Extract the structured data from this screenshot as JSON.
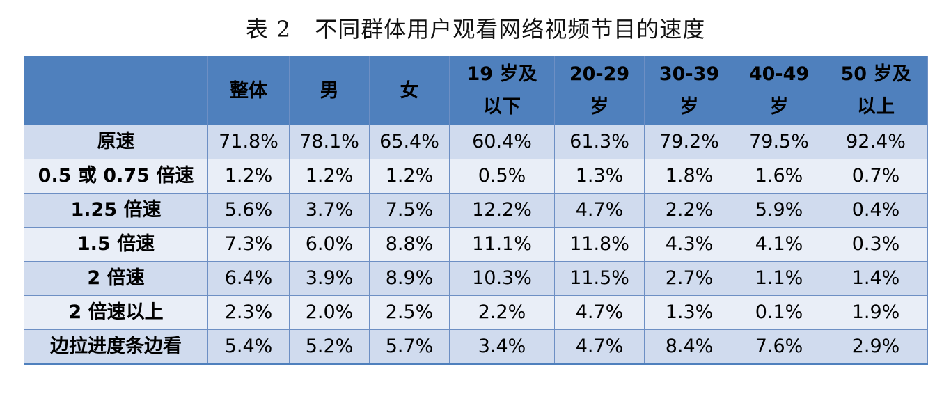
{
  "caption": {
    "number": "表 2",
    "title": "不同群体用户观看网络视频节目的速度"
  },
  "table": {
    "corner": "",
    "headers": [
      {
        "line1": "整体",
        "line2": ""
      },
      {
        "line1": "男",
        "line2": ""
      },
      {
        "line1": "女",
        "line2": ""
      },
      {
        "line1": "19 岁及",
        "line2": "以下"
      },
      {
        "line1": "20-29",
        "line2": "岁"
      },
      {
        "line1": "30-39",
        "line2": "岁"
      },
      {
        "line1": "40-49",
        "line2": "岁"
      },
      {
        "line1": "50 岁及",
        "line2": "以上"
      }
    ],
    "rows": [
      {
        "label": "原速",
        "cells": [
          "71.8%",
          "78.1%",
          "65.4%",
          "60.4%",
          "61.3%",
          "79.2%",
          "79.5%",
          "92.4%"
        ]
      },
      {
        "label": "0.5 或 0.75 倍速",
        "cells": [
          "1.2%",
          "1.2%",
          "1.2%",
          "0.5%",
          "1.3%",
          "1.8%",
          "1.6%",
          "0.7%"
        ]
      },
      {
        "label": "1.25 倍速",
        "cells": [
          "5.6%",
          "3.7%",
          "7.5%",
          "12.2%",
          "4.7%",
          "2.2%",
          "5.9%",
          "0.4%"
        ]
      },
      {
        "label": "1.5 倍速",
        "cells": [
          "7.3%",
          "6.0%",
          "8.8%",
          "11.1%",
          "11.8%",
          "4.3%",
          "4.1%",
          "0.3%"
        ]
      },
      {
        "label": "2 倍速",
        "cells": [
          "6.4%",
          "3.9%",
          "8.9%",
          "10.3%",
          "11.5%",
          "2.7%",
          "1.1%",
          "1.4%"
        ]
      },
      {
        "label": "2 倍速以上",
        "cells": [
          "2.3%",
          "2.0%",
          "2.5%",
          "2.2%",
          "4.7%",
          "1.3%",
          "0.1%",
          "1.9%"
        ]
      },
      {
        "label": "边拉进度条边看",
        "cells": [
          "5.4%",
          "5.2%",
          "5.7%",
          "3.4%",
          "4.7%",
          "8.4%",
          "7.6%",
          "2.9%"
        ]
      }
    ]
  },
  "colors": {
    "header_bg": "#4f80bd",
    "row_odd_bg": "#d0dbee",
    "row_even_bg": "#e9eef7",
    "border": "#6d8fc4"
  }
}
